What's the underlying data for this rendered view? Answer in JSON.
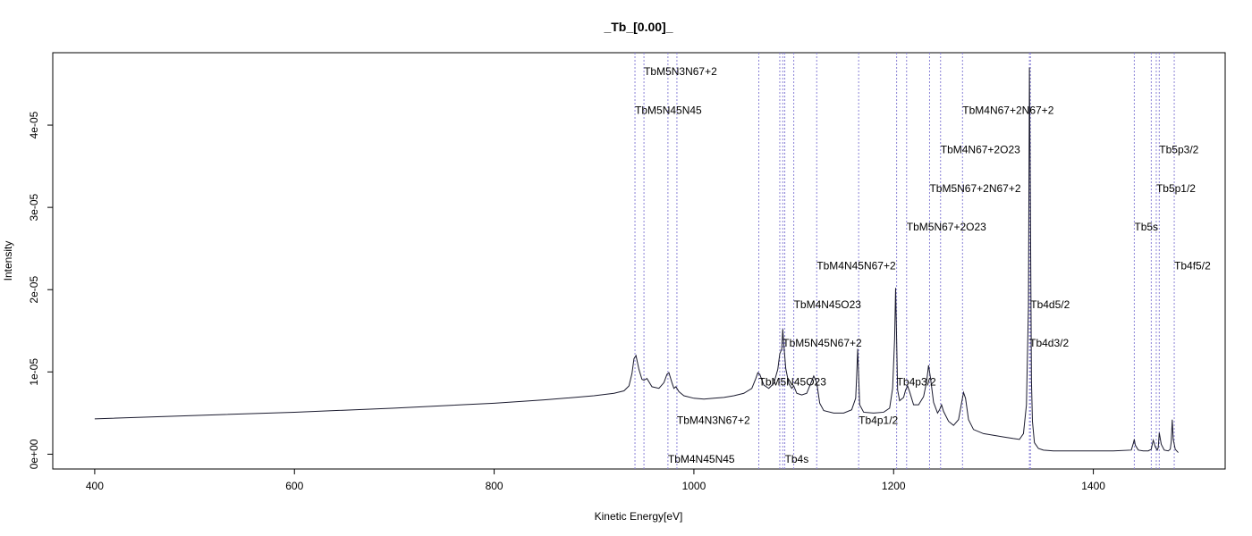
{
  "chart_data": {
    "type": "line",
    "title": "_Tb_[0.00]_",
    "xlabel": "Kinetic Energy[eV]",
    "ylabel": "Intensity",
    "xlim": [
      358,
      1532
    ],
    "ylim": [
      -1.8e-06,
      4.88e-05
    ],
    "x_ticks": [
      400,
      600,
      800,
      1000,
      1200,
      1400
    ],
    "x_tick_labels": [
      "400",
      "600",
      "800",
      "1000",
      "1200",
      "1400"
    ],
    "y_ticks": [
      0,
      1e-05,
      2e-05,
      3e-05,
      4e-05
    ],
    "y_tick_labels": [
      "0e+00",
      "1e-05",
      "2e-05",
      "3e-05",
      "4e-05"
    ],
    "grid": false,
    "colors": {
      "series": "#1a1a2e",
      "peak_lines": "#8a82d6",
      "axis": "#000000"
    },
    "series": [
      {
        "x": [
          400,
          500,
          600,
          700,
          800,
          850,
          900,
          920,
          930,
          935,
          938,
          940,
          942,
          945,
          948,
          950,
          953,
          958,
          965,
          970,
          973,
          975,
          978,
          980,
          982,
          985,
          990,
          1000,
          1010,
          1020,
          1030,
          1040,
          1050,
          1058,
          1062,
          1064,
          1066,
          1070,
          1075,
          1080,
          1084,
          1086,
          1088,
          1089,
          1090,
          1092,
          1095,
          1098,
          1100,
          1103,
          1108,
          1113,
          1117,
          1120,
          1123,
          1126,
          1130,
          1140,
          1150,
          1158,
          1162,
          1163,
          1164,
          1165,
          1166,
          1170,
          1180,
          1190,
          1196,
          1199,
          1201,
          1202,
          1203,
          1204,
          1206,
          1210,
          1212,
          1214,
          1216,
          1220,
          1225,
          1230,
          1233,
          1235,
          1237,
          1240,
          1244,
          1246,
          1248,
          1250,
          1255,
          1260,
          1265,
          1268,
          1270,
          1272,
          1275,
          1280,
          1290,
          1300,
          1310,
          1320,
          1326,
          1330,
          1333,
          1335,
          1336,
          1337,
          1338,
          1339,
          1341,
          1345,
          1350,
          1360,
          1380,
          1400,
          1420,
          1438,
          1440,
          1441,
          1442,
          1445,
          1450,
          1455,
          1458,
          1459,
          1460,
          1462,
          1464,
          1465,
          1466,
          1468,
          1471,
          1475,
          1477,
          1478,
          1479,
          1480,
          1482,
          1485
        ],
        "values": [
          4.3e-06,
          4.7e-06,
          5.1e-06,
          5.6e-06,
          6.2e-06,
          6.6e-06,
          7.1e-06,
          7.4e-06,
          7.7e-06,
          8.3e-06,
          9.8e-06,
          1.16e-05,
          1.2e-05,
          1.03e-05,
          9.1e-06,
          9e-06,
          9.2e-06,
          8.2e-06,
          8e-06,
          8.7e-06,
          9.7e-06,
          9.9e-06,
          8.7e-06,
          8e-06,
          8.2e-06,
          7.6e-06,
          7.1e-06,
          6.8e-06,
          6.7e-06,
          6.8e-06,
          6.9e-06,
          7.1e-06,
          7.4e-06,
          8e-06,
          9.2e-06,
          9.9e-06,
          9.7e-06,
          8.4e-06,
          8e-06,
          8.6e-06,
          1.03e-05,
          1.22e-05,
          1.28e-05,
          1.52e-05,
          1.34e-05,
          1.04e-05,
          8.6e-06,
          8e-06,
          8.3e-06,
          7.4e-06,
          7.2e-06,
          7.4e-06,
          8.6e-06,
          9.5e-06,
          8.7e-06,
          6.2e-06,
          5.3e-06,
          5e-06,
          5e-06,
          5.4e-06,
          6.8e-06,
          9.5e-06,
          1.28e-05,
          9.5e-06,
          6e-06,
          5.1e-06,
          5e-06,
          5.1e-06,
          5.6e-06,
          8e-06,
          1.4e-05,
          2.02e-05,
          1.4e-05,
          7.8e-06,
          6.5e-06,
          6.9e-06,
          7.8e-06,
          8.3e-06,
          7.6e-06,
          6e-06,
          6e-06,
          7e-06,
          8.8e-06,
          1.08e-05,
          9.2e-06,
          6.3e-06,
          5e-06,
          5.4e-06,
          6e-06,
          5.2e-06,
          4e-06,
          3.5e-06,
          4.2e-06,
          6.2e-06,
          7.5e-06,
          6.8e-06,
          4.2e-06,
          3e-06,
          2.5e-06,
          2.3e-06,
          2.1e-06,
          1.9e-06,
          1.8e-06,
          2.5e-06,
          6e-06,
          1.8e-05,
          4.7e-05,
          3e-05,
          9e-06,
          4e-06,
          1.4e-06,
          7e-07,
          5e-07,
          4e-07,
          4e-07,
          4e-07,
          4e-07,
          5e-07,
          1.3e-06,
          1.8e-06,
          1.1e-06,
          5e-07,
          4e-07,
          4e-07,
          6e-07,
          1.2e-06,
          1.7e-06,
          9e-07,
          5e-07,
          8e-07,
          2.6e-06,
          1.2e-06,
          5e-07,
          4e-07,
          6e-07,
          1.5e-06,
          4.2e-06,
          1.8e-06,
          6e-07,
          2e-07
        ]
      }
    ],
    "peak_markers": [
      {
        "x": 941,
        "label": "TbM5N45N45",
        "y_label": 4.18e-05
      },
      {
        "x": 950,
        "label": "TbM5N3N67+2",
        "y_label": 4.65e-05
      },
      {
        "x": 974,
        "label": "TbM4N45N45",
        "y_label": -6e-07
      },
      {
        "x": 983,
        "label": "TbM4N3N67+2",
        "y_label": 4.1e-06
      },
      {
        "x": 1065,
        "label": "TbM5N45O23",
        "y_label": 8.8e-06
      },
      {
        "x": 1086,
        "label": "",
        "y_label": null
      },
      {
        "x": 1089,
        "label": "TbM5N45N67+2",
        "y_label": 1.35e-05
      },
      {
        "x": 1091,
        "label": "Tb4s",
        "y_label": -6e-07
      },
      {
        "x": 1100,
        "label": "TbM4N45O23",
        "y_label": 1.82e-05
      },
      {
        "x": 1123,
        "label": "TbM4N45N67+2",
        "y_label": 2.29e-05
      },
      {
        "x": 1165,
        "label": "Tb4p1/2",
        "y_label": 4.1e-06
      },
      {
        "x": 1203,
        "label": "Tb4p3/2",
        "y_label": 8.8e-06
      },
      {
        "x": 1213,
        "label": "TbM5N67+2O23",
        "y_label": 2.76e-05
      },
      {
        "x": 1236,
        "label": "TbM5N67+2N67+2",
        "y_label": 3.23e-05
      },
      {
        "x": 1247,
        "label": "TbM4N67+2O23",
        "y_label": 3.7e-05
      },
      {
        "x": 1269,
        "label": "TbM4N67+2N67+2",
        "y_label": 4.18e-05
      },
      {
        "x": 1336,
        "label": "Tb4d3/2",
        "y_label": 1.35e-05
      },
      {
        "x": 1337,
        "label": "Tb4d5/2",
        "y_label": 1.82e-05
      },
      {
        "x": 1441,
        "label": "Tb5s",
        "y_label": 2.76e-05
      },
      {
        "x": 1458,
        "label": "",
        "y_label": null
      },
      {
        "x": 1463,
        "label": "Tb5p1/2",
        "y_label": 3.23e-05
      },
      {
        "x": 1466,
        "label": "Tb5p3/2",
        "y_label": 3.7e-05
      },
      {
        "x": 1481,
        "label": "Tb4f5/2",
        "y_label": 2.29e-05
      }
    ]
  }
}
